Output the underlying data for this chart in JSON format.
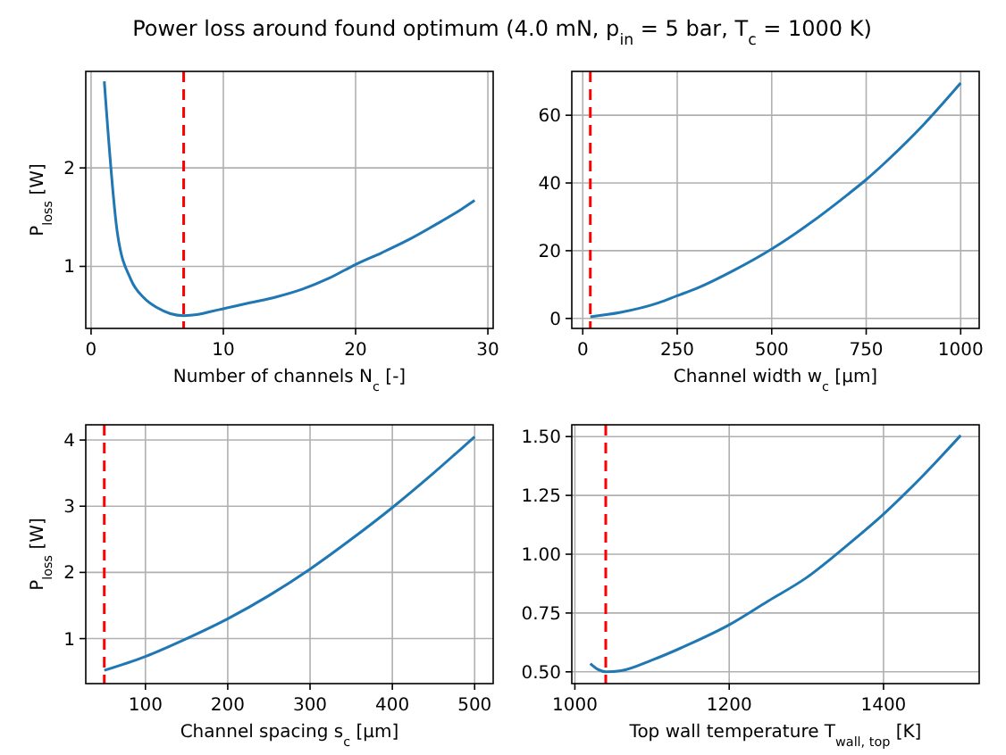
{
  "chart_data": [
    {
      "type": "line",
      "title": "Power loss around found optimum (4.0 mN, p$_{in}$ = 5 bar, T$_{c}$ = 1000 K)",
      "xlabel": "Number of channels N$_{c}$ [-]",
      "ylabel": "P$_{loss}$ [W]",
      "grid": true,
      "xlim": [
        -0.4,
        30.4
      ],
      "ylim": [
        0.37,
        2.98
      ],
      "xticks": [
        0,
        10,
        20,
        30
      ],
      "yticks": [
        1,
        2
      ],
      "x": [
        1,
        2,
        3,
        4,
        5,
        6,
        7,
        8,
        9,
        10,
        12,
        14,
        16,
        18,
        20,
        22,
        24,
        26,
        28,
        29
      ],
      "series": [
        {
          "color": "#1f77b4",
          "values": [
            2.88,
            1.33,
            0.87,
            0.68,
            0.58,
            0.52,
            0.5,
            0.51,
            0.54,
            0.57,
            0.63,
            0.69,
            0.77,
            0.88,
            1.02,
            1.14,
            1.27,
            1.42,
            1.58,
            1.67
          ]
        }
      ],
      "ref_lines": [
        {
          "axis": "x",
          "value": 7,
          "color": "#ff0000",
          "line_style": "dashed"
        }
      ]
    },
    {
      "type": "line",
      "xlabel": "Channel width w$_{c}$ [μm]",
      "grid": true,
      "xlim": [
        -29,
        1049
      ],
      "ylim": [
        -2.95,
        72.95
      ],
      "xticks": [
        0,
        250,
        500,
        750,
        1000
      ],
      "yticks": [
        0,
        20,
        40,
        60
      ],
      "x": [
        20,
        100,
        200,
        250,
        300,
        400,
        500,
        600,
        700,
        750,
        800,
        900,
        1000
      ],
      "series": [
        {
          "color": "#1f77b4",
          "values": [
            0.5,
            1.8,
            4.6,
            6.7,
            8.8,
            14.2,
            20.5,
            28,
            36.5,
            41,
            46,
            57,
            69.5
          ]
        }
      ],
      "ref_lines": [
        {
          "axis": "x",
          "value": 20,
          "color": "#ff0000",
          "line_style": "dashed"
        }
      ]
    },
    {
      "type": "line",
      "xlabel": "Channel spacing s$_{c}$ [μm]",
      "ylabel": "P$_{loss}$ [W]",
      "grid": true,
      "xlim": [
        27.5,
        522.5
      ],
      "ylim": [
        0.32,
        4.23
      ],
      "xticks": [
        100,
        200,
        300,
        400,
        500
      ],
      "yticks": [
        1,
        2,
        3,
        4
      ],
      "x": [
        50,
        100,
        150,
        200,
        250,
        300,
        350,
        400,
        450,
        500
      ],
      "series": [
        {
          "color": "#1f77b4",
          "values": [
            0.52,
            0.73,
            1.0,
            1.3,
            1.65,
            2.05,
            2.5,
            2.98,
            3.5,
            4.05
          ]
        }
      ],
      "ref_lines": [
        {
          "axis": "x",
          "value": 50,
          "color": "#ff0000",
          "line_style": "dashed"
        }
      ]
    },
    {
      "type": "line",
      "xlabel": "Top wall temperature T$_{wall, top}$ [K]",
      "grid": true,
      "xlim": [
        996,
        1524
      ],
      "ylim": [
        0.45,
        1.55
      ],
      "xticks": [
        1000,
        1200,
        1400
      ],
      "yticks": [
        {
          "value": 0.5,
          "label": "0.50"
        },
        {
          "value": 0.75,
          "label": "0.75"
        },
        {
          "value": 1,
          "label": "1.00"
        },
        {
          "value": 1.25,
          "label": "1.25"
        },
        {
          "value": 1.5,
          "label": "1.50"
        }
      ],
      "x": [
        1020,
        1030,
        1040,
        1060,
        1100,
        1150,
        1200,
        1250,
        1300,
        1350,
        1400,
        1450,
        1500
      ],
      "series": [
        {
          "color": "#1f77b4",
          "values": [
            0.535,
            0.51,
            0.5,
            0.505,
            0.55,
            0.62,
            0.7,
            0.8,
            0.9,
            1.03,
            1.17,
            1.33,
            1.505
          ]
        }
      ],
      "ref_lines": [
        {
          "axis": "x",
          "value": 1040,
          "color": "#ff0000",
          "line_style": "dashed"
        }
      ]
    }
  ]
}
